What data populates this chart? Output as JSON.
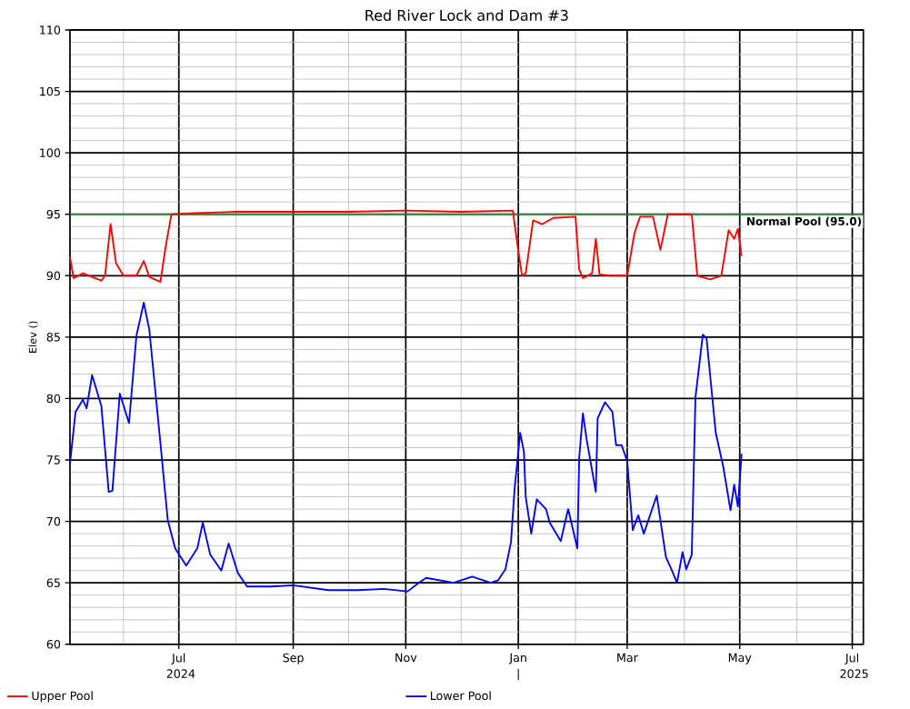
{
  "chart_data": {
    "type": "line",
    "title": "Red River Lock and Dam #3",
    "ylabel": "Elev ()",
    "xlim": [
      "2024-05-03",
      "2025-07-07"
    ],
    "xticks": [
      {
        "value": "2024-06-01",
        "label": null
      },
      {
        "value": "2024-07-01",
        "label": "Jul 2024"
      },
      {
        "value": "2024-08-01",
        "label": null
      },
      {
        "value": "2024-09-01",
        "label": "Sep"
      },
      {
        "value": "2024-10-01",
        "label": null
      },
      {
        "value": "2024-11-01",
        "label": "Nov"
      },
      {
        "value": "2024-12-01",
        "label": null
      },
      {
        "value": "2025-01-01",
        "label": "Jan |"
      },
      {
        "value": "2025-02-01",
        "label": null
      },
      {
        "value": "2025-03-01",
        "label": "Mar"
      },
      {
        "value": "2025-04-01",
        "label": null
      },
      {
        "value": "2025-05-01",
        "label": "May"
      },
      {
        "value": "2025-06-01",
        "label": null
      },
      {
        "value": "2025-07-01",
        "label": "Jul 2025"
      }
    ],
    "ylim": [
      60,
      110
    ],
    "yticks": [
      60,
      65,
      70,
      75,
      80,
      85,
      90,
      95,
      100,
      105,
      110
    ],
    "grid": true,
    "legend": "bottom",
    "marker": "none",
    "line_style": "solid",
    "ref_lines": [
      {
        "axis": "y",
        "value": 95.0,
        "label": "Normal Pool (95.0)",
        "color": "#00aa00"
      }
    ],
    "series": [
      {
        "name": "Upper Pool",
        "color": "#ff0000",
        "x": [
          "2024-05-03",
          "2024-05-05",
          "2024-05-10",
          "2024-05-15",
          "2024-05-20",
          "2024-05-22",
          "2024-05-25",
          "2024-05-28",
          "2024-06-01",
          "2024-06-08",
          "2024-06-12",
          "2024-06-15",
          "2024-06-21",
          "2024-06-24",
          "2024-06-27",
          "2024-07-10",
          "2024-08-01",
          "2024-09-01",
          "2024-10-01",
          "2024-11-01",
          "2024-12-01",
          "2024-12-29",
          "2025-01-01",
          "2025-01-03",
          "2025-01-05",
          "2025-01-09",
          "2025-01-14",
          "2025-01-20",
          "2025-02-01",
          "2025-02-03",
          "2025-02-05",
          "2025-02-10",
          "2025-02-12",
          "2025-02-14",
          "2025-02-20",
          "2025-03-01",
          "2025-03-05",
          "2025-03-08",
          "2025-03-15",
          "2025-03-19",
          "2025-03-23",
          "2025-04-05",
          "2025-04-08",
          "2025-04-15",
          "2025-04-21",
          "2025-04-25",
          "2025-04-28",
          "2025-04-30",
          "2025-05-02"
        ],
        "values": [
          91.5,
          89.8,
          90.2,
          89.9,
          89.6,
          90.0,
          94.2,
          91.0,
          90.0,
          90.0,
          91.2,
          89.9,
          89.5,
          92.5,
          95.0,
          95.1,
          95.2,
          95.2,
          95.2,
          95.3,
          95.2,
          95.3,
          92.0,
          90.0,
          90.2,
          94.5,
          94.2,
          94.7,
          94.8,
          90.5,
          89.8,
          90.2,
          93.0,
          90.1,
          90.0,
          90.0,
          93.5,
          94.8,
          94.8,
          92.1,
          95.0,
          95.0,
          90.0,
          89.7,
          90.0,
          93.7,
          93.0,
          93.8,
          91.6
        ]
      },
      {
        "name": "Lower Pool",
        "color": "#0000ff",
        "x": [
          "2024-05-03",
          "2024-05-06",
          "2024-05-10",
          "2024-05-12",
          "2024-05-15",
          "2024-05-20",
          "2024-05-24",
          "2024-05-26",
          "2024-05-30",
          "2024-06-04",
          "2024-06-08",
          "2024-06-12",
          "2024-06-15",
          "2024-06-21",
          "2024-06-25",
          "2024-06-29",
          "2024-07-05",
          "2024-07-11",
          "2024-07-14",
          "2024-07-18",
          "2024-07-24",
          "2024-07-28",
          "2024-08-02",
          "2024-08-07",
          "2024-08-20",
          "2024-09-01",
          "2024-09-20",
          "2024-10-06",
          "2024-10-20",
          "2024-11-02",
          "2024-11-08",
          "2024-11-12",
          "2024-11-27",
          "2024-12-07",
          "2024-12-17",
          "2024-12-21",
          "2024-12-25",
          "2024-12-28",
          "2024-12-30",
          "2025-01-02",
          "2025-01-04",
          "2025-01-05",
          "2025-01-08",
          "2025-01-11",
          "2025-01-16",
          "2025-01-18",
          "2025-01-24",
          "2025-01-28",
          "2025-02-02",
          "2025-02-03",
          "2025-02-05",
          "2025-02-07",
          "2025-02-12",
          "2025-02-13",
          "2025-02-17",
          "2025-02-21",
          "2025-02-23",
          "2025-02-26",
          "2025-03-01",
          "2025-03-04",
          "2025-03-07",
          "2025-03-10",
          "2025-03-17",
          "2025-03-22",
          "2025-03-25",
          "2025-03-28",
          "2025-03-31",
          "2025-04-02",
          "2025-04-05",
          "2025-04-07",
          "2025-04-11",
          "2025-04-13",
          "2025-04-18",
          "2025-04-22",
          "2025-04-26",
          "2025-04-28",
          "2025-04-30",
          "2025-05-02"
        ],
        "values": [
          74.7,
          78.9,
          79.9,
          79.2,
          81.9,
          79.4,
          72.4,
          72.5,
          80.4,
          78.0,
          85.1,
          87.8,
          85.6,
          76.4,
          70.1,
          67.8,
          66.4,
          67.8,
          69.9,
          67.3,
          66.0,
          68.2,
          65.8,
          64.7,
          64.7,
          64.8,
          64.4,
          64.4,
          64.5,
          64.3,
          65.0,
          65.4,
          65.0,
          65.5,
          65.0,
          65.2,
          66.1,
          68.3,
          72.7,
          77.2,
          75.7,
          72.0,
          69.0,
          71.8,
          71.0,
          69.9,
          68.4,
          71.0,
          67.8,
          75.2,
          78.8,
          76.7,
          72.4,
          78.4,
          79.7,
          78.9,
          76.2,
          76.2,
          74.9,
          69.3,
          70.5,
          69.0,
          72.1,
          67.1,
          66.1,
          65.0,
          67.5,
          66.1,
          67.3,
          80.1,
          85.2,
          84.9,
          77.2,
          74.5,
          70.9,
          73.0,
          71.2,
          75.5
        ]
      }
    ]
  }
}
